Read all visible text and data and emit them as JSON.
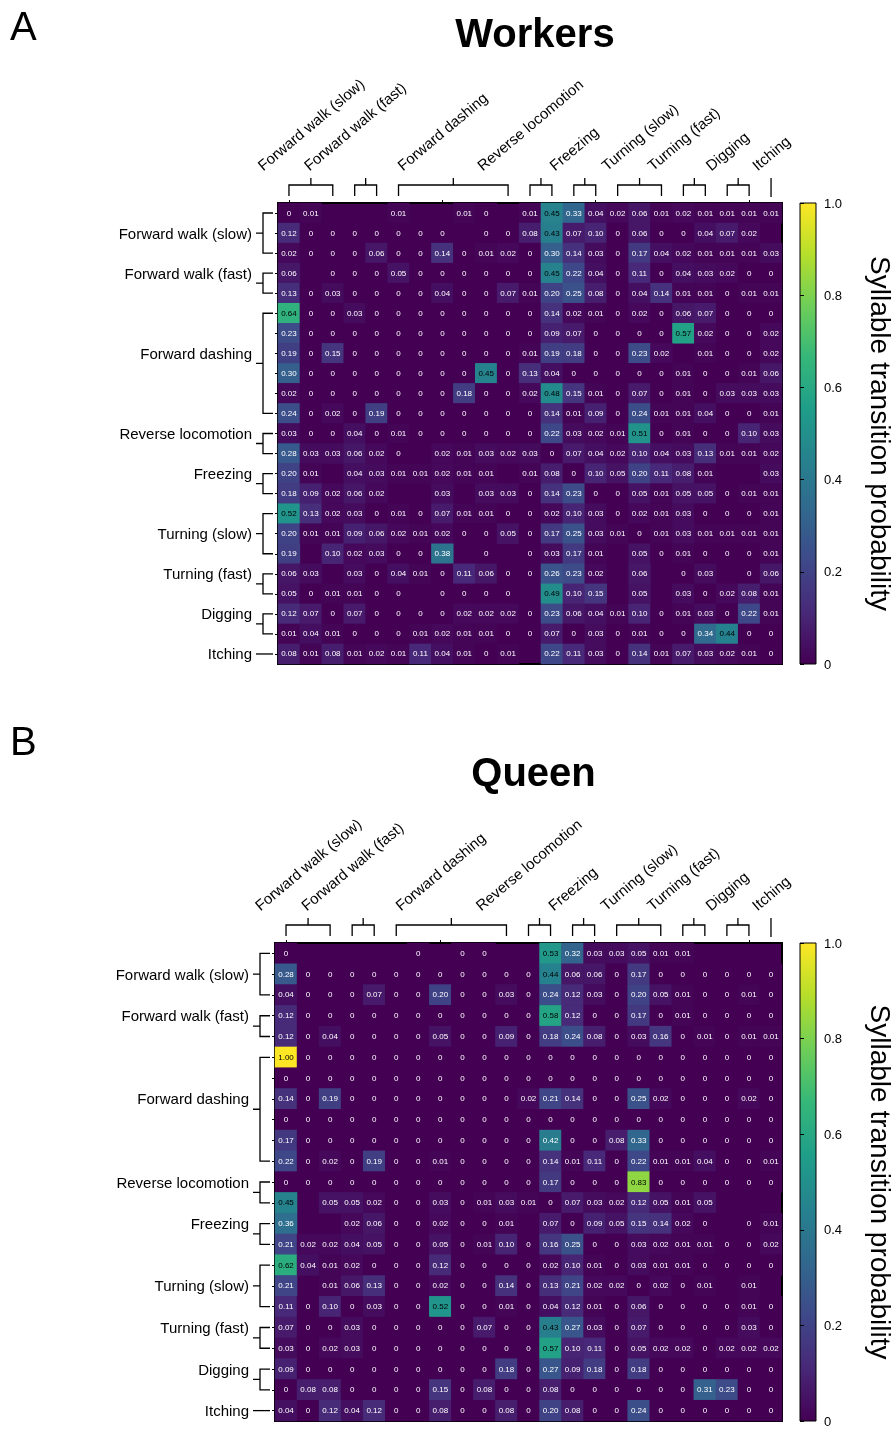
{
  "chart_data": [
    {
      "type": "heatmap",
      "title": "Workers",
      "annotations": [
        "A"
      ],
      "clabel": "Syllable transition probability",
      "clim": [
        0,
        1
      ],
      "cticks": [
        0,
        0.2,
        0.4,
        0.6,
        0.8,
        {
          "value": 1,
          "label": "1.0"
        }
      ],
      "cell_labels": [
        [
          "0",
          "0.01",
          null,
          null,
          null,
          "0.01",
          null,
          null,
          "0.01",
          "0",
          null,
          "0.01",
          "0.45",
          "0.33",
          "0.04",
          "0.02",
          "0.06",
          "0.01",
          "0.02",
          "0.01",
          "0.01",
          "0.01",
          "0.01"
        ],
        [
          "0.12",
          "0",
          "0",
          "0",
          "0",
          "0",
          "0",
          "0",
          null,
          "0",
          "0",
          "0.08",
          "0.43",
          "0.07",
          "0.10",
          "0",
          "0.06",
          "0",
          "0",
          "0.04",
          "0.07",
          "0.02",
          null
        ],
        [
          "0.02",
          "0",
          "0",
          "0",
          "0.06",
          "0",
          "0",
          "0.14",
          "0",
          "0.01",
          "0.02",
          "0",
          "0.30",
          "0.14",
          "0.03",
          "0",
          "0.17",
          "0.04",
          "0.02",
          "0.01",
          "0.01",
          "0.01",
          "0.03"
        ],
        [
          "0.06",
          null,
          "0",
          "0",
          "0",
          "0.05",
          "0",
          "0",
          "0",
          "0",
          "0",
          "0",
          "0.45",
          "0.22",
          "0.04",
          "0",
          "0.11",
          "0",
          "0.04",
          "0.03",
          "0.02",
          "0",
          "0"
        ],
        [
          "0.13",
          "0",
          "0.03",
          "0",
          "0",
          "0",
          "0",
          "0.04",
          "0",
          "0",
          "0.07",
          "0.01",
          "0.20",
          "0.25",
          "0.08",
          "0",
          "0.04",
          "0.14",
          "0.01",
          "0.01",
          "0",
          "0.01",
          "0.01"
        ],
        [
          "0.64",
          "0",
          "0",
          "0.03",
          "0",
          "0",
          "0",
          "0",
          "0",
          "0",
          "0",
          "0",
          "0.14",
          "0.02",
          "0.01",
          "0",
          "0.02",
          "0",
          "0.06",
          "0.07",
          "0",
          "0",
          "0"
        ],
        [
          "0.23",
          "0",
          "0",
          "0",
          "0",
          "0",
          "0",
          "0",
          "0",
          "0",
          "0",
          "0",
          "0.09",
          "0.07",
          "0",
          "0",
          "0",
          "0",
          "0.57",
          "0.02",
          "0",
          "0",
          "0.02"
        ],
        [
          "0.19",
          "0",
          "0.15",
          "0",
          "0",
          "0",
          "0",
          "0",
          "0",
          "0",
          "0",
          "0.01",
          "0.19",
          "0.18",
          "0",
          "0",
          "0.23",
          "0.02",
          null,
          "0.01",
          "0",
          "0",
          "0.02"
        ],
        [
          "0.30",
          "0",
          "0",
          "0",
          "0",
          "0",
          "0",
          "0",
          "0",
          "0.45",
          "0",
          "0.13",
          "0.04",
          "0",
          "0",
          "0",
          "0",
          "0",
          "0.01",
          "0",
          "0",
          "0.01",
          "0.06"
        ],
        [
          "0.02",
          "0",
          "0",
          "0",
          "0",
          "0",
          "0",
          "0",
          "0.18",
          "0",
          "0",
          "0.02",
          "0.48",
          "0.15",
          "0.01",
          "0",
          "0.07",
          "0",
          "0.01",
          "0",
          "0.03",
          "0.03",
          "0.03"
        ],
        [
          "0.24",
          "0",
          "0.02",
          "0",
          "0.19",
          "0",
          "0",
          "0",
          "0",
          "0",
          "0",
          "0",
          "0.14",
          "0.01",
          "0.09",
          "0",
          "0.24",
          "0.01",
          "0.01",
          "0.04",
          "0",
          "0",
          "0.01"
        ],
        [
          "0.03",
          "0",
          "0",
          "0.04",
          "0",
          "0.01",
          "0",
          "0",
          "0",
          "0",
          "0",
          "0",
          "0.22",
          "0.03",
          "0.02",
          "0.01",
          "0.51",
          "0",
          "0.01",
          "0",
          "0",
          "0.10",
          "0.03"
        ],
        [
          "0.28",
          "0.03",
          "0.03",
          "0.06",
          "0.02",
          "0",
          null,
          "0.02",
          "0.01",
          "0.03",
          "0.02",
          "0.03",
          "0",
          "0.07",
          "0.04",
          "0.02",
          "0.10",
          "0.04",
          "0.03",
          "0.13",
          "0.01",
          "0.01",
          "0.02"
        ],
        [
          "0.20",
          "0.01",
          null,
          "0.04",
          "0.03",
          "0.01",
          "0.01",
          "0.02",
          "0.01",
          "0.01",
          null,
          "0.01",
          "0.08",
          "0",
          "0.10",
          "0.05",
          "0.20",
          "0.11",
          "0.08",
          "0.01",
          null,
          null,
          "0.03"
        ],
        [
          "0.18",
          "0.09",
          "0.02",
          "0.06",
          "0.02",
          null,
          null,
          "0.03",
          null,
          "0.03",
          "0.03",
          "0",
          "0.14",
          "0.23",
          "0",
          "0",
          "0.05",
          "0.01",
          "0.05",
          "0.05",
          "0",
          "0.01",
          "0.01"
        ],
        [
          "0.52",
          "0.13",
          "0.02",
          "0.03",
          "0",
          "0.01",
          "0",
          "0.07",
          "0.01",
          "0.01",
          "0",
          "0",
          "0.02",
          "0.10",
          "0.03",
          "0",
          "0.02",
          "0.01",
          "0.03",
          "0",
          "0",
          "0",
          "0.01"
        ],
        [
          "0.20",
          "0.01",
          "0.01",
          "0.09",
          "0.06",
          "0.02",
          "0.01",
          "0.02",
          "0",
          "0",
          "0.05",
          "0",
          "0.17",
          "0.25",
          "0.03",
          "0.01",
          "0",
          "0.01",
          "0.03",
          "0.01",
          "0.01",
          "0.01",
          "0.01"
        ],
        [
          "0.19",
          null,
          "0.10",
          "0.02",
          "0.03",
          "0",
          "0",
          "0.38",
          null,
          "0",
          null,
          "0",
          "0.03",
          "0.17",
          "0.01",
          null,
          "0.05",
          "0",
          "0.01",
          "0",
          "0",
          "0",
          "0.01"
        ],
        [
          "0.06",
          "0.03",
          null,
          "0.03",
          "0",
          "0.04",
          "0.01",
          "0",
          "0.11",
          "0.06",
          "0",
          "0",
          "0.26",
          "0.23",
          "0.02",
          null,
          "0.06",
          null,
          "0",
          "0.03",
          null,
          "0",
          "0.06"
        ],
        [
          "0.05",
          "0",
          "0.01",
          "0.01",
          "0",
          "0",
          null,
          "0",
          "0",
          "0",
          "0",
          null,
          "0.49",
          "0.10",
          "0.15",
          null,
          "0.05",
          null,
          "0.03",
          "0",
          "0.02",
          "0.08",
          "0.01"
        ],
        [
          "0.12",
          "0.07",
          "0",
          "0.07",
          "0",
          "0",
          "0",
          "0",
          "0.02",
          "0.02",
          "0.02",
          "0",
          "0.23",
          "0.06",
          "0.04",
          "0.01",
          "0.10",
          "0",
          "0.01",
          "0.03",
          "0",
          "0.22",
          "0.01"
        ],
        [
          "0.01",
          "0.04",
          "0.01",
          "0",
          "0",
          "0",
          "0.01",
          "0.02",
          "0.01",
          "0.01",
          "0",
          "0",
          "0.07",
          "0",
          "0.03",
          "0",
          "0.01",
          "0",
          "0",
          "0.34",
          "0.44",
          "0",
          "0"
        ],
        [
          "0.08",
          "0.01",
          "0.08",
          "0.01",
          "0.02",
          "0.01",
          "0.11",
          "0.04",
          "0.01",
          "0",
          "0.01",
          null,
          "0.22",
          "0.11",
          "0.03",
          "0",
          "0.14",
          "0.01",
          "0.07",
          "0.03",
          "0.02",
          "0.01",
          "0"
        ]
      ],
      "categories": [
        null,
        "Forward walk (slow)",
        null,
        "Forward walk (fast)",
        null,
        null,
        null,
        "Forward dashing",
        null,
        null,
        null,
        "Reverse locomotion",
        null,
        "Freezing",
        null,
        null,
        "Turning (slow)",
        null,
        "Turning (fast)",
        null,
        "Digging",
        null,
        "Itching"
      ],
      "y_categories": [
        null,
        "Forward walk (slow)",
        null,
        "Forward walk (fast)",
        null,
        null,
        null,
        "Forward dashing",
        null,
        null,
        null,
        "Reverse locomotion",
        null,
        "Freezing",
        null,
        null,
        "Turning (slow)",
        null,
        "Turning (fast)",
        null,
        "Digging",
        null,
        "Itching"
      ],
      "cells": [
        [
          0,
          0.01,
          null,
          null,
          null,
          0.01,
          null,
          null,
          0.01,
          0,
          null,
          0.01,
          0.45,
          0.33,
          0.04,
          0.02,
          0.06,
          0.01,
          0.02,
          0.01,
          0.01,
          0.01,
          0.01
        ],
        [
          0.12,
          0,
          0,
          0,
          0,
          0,
          0,
          0,
          null,
          0,
          0,
          0.08,
          0.43,
          0.07,
          0.1,
          0,
          0.06,
          0,
          0,
          0.04,
          0.07,
          0.02,
          null
        ],
        [
          0.02,
          0,
          0,
          0,
          0.06,
          0,
          0,
          0.14,
          0,
          0.01,
          0.02,
          0,
          0.3,
          0.14,
          0.03,
          0,
          0.17,
          0.04,
          0.02,
          0.01,
          0.01,
          0.01,
          0.03
        ],
        [
          0.06,
          null,
          0,
          0,
          0,
          0.05,
          0,
          0,
          0,
          0,
          0,
          0,
          0.45,
          0.22,
          0.04,
          0,
          0.11,
          0,
          0.04,
          0.03,
          0.02,
          0,
          0
        ],
        [
          0.13,
          0,
          0.03,
          0,
          0,
          0,
          0,
          0.04,
          0,
          0,
          0.07,
          0.01,
          0.2,
          0.25,
          0.08,
          0,
          0.04,
          0.14,
          0.01,
          0.01,
          0,
          0.01,
          0.01
        ],
        [
          0.64,
          0,
          0,
          0.03,
          0,
          0,
          0,
          0,
          0,
          0,
          0,
          0,
          0.14,
          0.02,
          0.01,
          0,
          0.02,
          0,
          0.06,
          0.07,
          0,
          0,
          0
        ],
        [
          0.23,
          0,
          0,
          0,
          0,
          0,
          0,
          0,
          0,
          0,
          0,
          0,
          0.09,
          0.07,
          0,
          0,
          0,
          0,
          0.57,
          0.02,
          0,
          0,
          0.02
        ],
        [
          0.19,
          0,
          0.15,
          0,
          0,
          0,
          0,
          0,
          0,
          0,
          0,
          0.01,
          0.19,
          0.18,
          0,
          0,
          0.23,
          0.02,
          null,
          0.01,
          0,
          0,
          0.02
        ],
        [
          0.3,
          0,
          0,
          0,
          0,
          0,
          0,
          0,
          0,
          0.45,
          0,
          0.13,
          0.04,
          0,
          0,
          0,
          0,
          0,
          0.01,
          0,
          0,
          0.01,
          0.06
        ],
        [
          0.02,
          0,
          0,
          0,
          0,
          0,
          0,
          0,
          0.18,
          0,
          0,
          0.02,
          0.48,
          0.15,
          0.01,
          0,
          0.07,
          0,
          0.01,
          0,
          0.03,
          0.03,
          0.03
        ],
        [
          0.24,
          0,
          0.02,
          0,
          0.19,
          0,
          0,
          0,
          0,
          0,
          0,
          0,
          0.14,
          0.01,
          0.09,
          0,
          0.24,
          0.01,
          0.01,
          0.04,
          0,
          0,
          0.01
        ],
        [
          0.03,
          0,
          0,
          0.04,
          0,
          0.01,
          0,
          0,
          0,
          0,
          0,
          0,
          0.22,
          0.03,
          0.02,
          0.01,
          0.51,
          0,
          0.01,
          0,
          0,
          0.1,
          0.03
        ],
        [
          0.28,
          0.03,
          0.03,
          0.06,
          0.02,
          0,
          null,
          0.02,
          0.01,
          0.03,
          0.02,
          0.03,
          0,
          0.07,
          0.04,
          0.02,
          0.1,
          0.04,
          0.03,
          0.13,
          0.01,
          0.01,
          0.02
        ],
        [
          0.2,
          0.01,
          null,
          0.04,
          0.03,
          0.01,
          0.01,
          0.02,
          0.01,
          0.01,
          null,
          0.01,
          0.08,
          0,
          0.1,
          0.05,
          0.2,
          0.11,
          0.08,
          0.01,
          null,
          null,
          0.03
        ],
        [
          0.18,
          0.09,
          0.02,
          0.06,
          0.02,
          null,
          null,
          0.03,
          null,
          0.03,
          0.03,
          0,
          0.14,
          0.23,
          0,
          0,
          0.05,
          0.01,
          0.05,
          0.05,
          0,
          0.01,
          0.01
        ],
        [
          0.52,
          0.13,
          0.02,
          0.03,
          0,
          0.01,
          0,
          0.07,
          0.01,
          0.01,
          0,
          0,
          0.02,
          0.1,
          0.03,
          0,
          0.02,
          0.01,
          0.03,
          0,
          0,
          0,
          0.01
        ],
        [
          0.2,
          0.01,
          0.01,
          0.09,
          0.06,
          0.02,
          0.01,
          0.02,
          0,
          0,
          0.05,
          0,
          0.17,
          0.25,
          0.03,
          0.01,
          0,
          0.01,
          0.03,
          0.01,
          0.01,
          0.01,
          0.01
        ],
        [
          0.19,
          null,
          0.1,
          0.02,
          0.03,
          0,
          0,
          0.38,
          null,
          0,
          null,
          0,
          0.03,
          0.17,
          0.01,
          null,
          0.05,
          0,
          0.01,
          0,
          0,
          0,
          0.01
        ],
        [
          0.06,
          0.03,
          null,
          0.03,
          0,
          0.04,
          0.01,
          0,
          0.11,
          0.06,
          0,
          0,
          0.26,
          0.23,
          0.02,
          null,
          0.06,
          null,
          0,
          0.03,
          null,
          0,
          0.06
        ],
        [
          0.05,
          0,
          0.01,
          0.01,
          0,
          0,
          null,
          0,
          0,
          0,
          0,
          null,
          0.49,
          0.1,
          0.15,
          null,
          0.05,
          null,
          0.03,
          0,
          0.02,
          0.08,
          0.01
        ],
        [
          0.12,
          0.07,
          0,
          0.07,
          0,
          0,
          0,
          0,
          0.02,
          0.02,
          0.02,
          0,
          0.23,
          0.06,
          0.04,
          0.01,
          0.1,
          0,
          0.01,
          0.03,
          0,
          0.22,
          0.01
        ],
        [
          0.01,
          0.04,
          0.01,
          0,
          0,
          0,
          0.01,
          0.02,
          0.01,
          0.01,
          0,
          0,
          0.07,
          0,
          0.03,
          0,
          0.01,
          0,
          0,
          0.34,
          0.44,
          0,
          0
        ],
        [
          0.08,
          0.01,
          0.08,
          0.01,
          0.02,
          0.01,
          0.11,
          0.04,
          0.01,
          0,
          0.01,
          null,
          0.22,
          0.11,
          0.03,
          0,
          0.14,
          0.01,
          0.07,
          0.03,
          0.02,
          0.01,
          0
        ]
      ]
    },
    {
      "type": "heatmap",
      "title": "Queen",
      "annotations": [
        "B"
      ],
      "clabel": "Syllable transition probability",
      "clim": [
        0,
        1
      ],
      "cticks": [
        0,
        0.2,
        0.4,
        0.6,
        0.8,
        {
          "value": 1,
          "label": "1.0"
        }
      ],
      "cell_labels": [
        [
          "0",
          null,
          null,
          null,
          null,
          null,
          "0",
          null,
          "0",
          "0",
          null,
          null,
          "0.53",
          "0.32",
          "0.03",
          "0.03",
          "0.05",
          "0.01",
          "0.01",
          null,
          null,
          null,
          null
        ],
        [
          "0.28",
          "0",
          "0",
          "0",
          "0",
          "0",
          "0",
          "0",
          "0",
          "0",
          "0",
          "0",
          "0.44",
          "0.06",
          "0.06",
          "0",
          "0.17",
          "0",
          "0",
          "0",
          "0",
          "0",
          "0"
        ],
        [
          "0.04",
          "0",
          "0",
          "0",
          "0.07",
          "0",
          "0",
          "0.20",
          "0",
          "0",
          "0.03",
          "0",
          "0.24",
          "0.12",
          "0.03",
          "0",
          "0.20",
          "0.05",
          "0.01",
          "0",
          "0",
          "0.01",
          "0"
        ],
        [
          "0.12",
          "0",
          "0",
          "0",
          "0",
          "0",
          "0",
          "0",
          "0",
          "0",
          "0",
          "0",
          "0.58",
          "0.12",
          "0",
          "0",
          "0.17",
          "0",
          "0.01",
          "0",
          "0",
          "0",
          "0"
        ],
        [
          "0.12",
          "0",
          "0.04",
          "0",
          "0",
          "0",
          "0",
          "0.05",
          "0",
          "0",
          "0.09",
          "0",
          "0.18",
          "0.24",
          "0.08",
          "0",
          "0.03",
          "0.16",
          "0",
          "0.01",
          "0",
          "0.01",
          "0.01"
        ],
        [
          "1.00",
          "0",
          "0",
          "0",
          "0",
          "0",
          "0",
          "0",
          "0",
          "0",
          "0",
          "0",
          "0",
          "0",
          "0",
          "0",
          "0",
          "0",
          "0",
          "0",
          "0",
          "0",
          "0"
        ],
        [
          "0",
          "0",
          "0",
          "0",
          "0",
          "0",
          "0",
          "0",
          "0",
          "0",
          "0",
          "0",
          "0",
          "0",
          "0",
          "0",
          "0",
          "0",
          "0",
          "0",
          "0",
          "0",
          "0"
        ],
        [
          "0.14",
          "0",
          "0.19",
          "0",
          "0",
          "0",
          "0",
          "0",
          "0",
          "0",
          "0",
          "0.02",
          "0.21",
          "0.14",
          "0",
          "0",
          "0.25",
          "0.02",
          "0",
          "0",
          "0",
          "0.02",
          "0"
        ],
        [
          "0",
          "0",
          "0",
          "0",
          "0",
          "0",
          "0",
          "0",
          "0",
          "0",
          "0",
          "0",
          "0",
          "0",
          "0",
          "0",
          "0",
          "0",
          "0",
          "0",
          "0",
          "0",
          "0"
        ],
        [
          "0.17",
          "0",
          "0",
          "0",
          "0",
          "0",
          "0",
          "0",
          "0",
          "0",
          "0",
          "0",
          "0.42",
          "0",
          "0",
          "0.08",
          "0.33",
          "0",
          "0",
          "0",
          "0",
          "0",
          "0"
        ],
        [
          "0.22",
          "0",
          "0.02",
          "0",
          "0.19",
          "0",
          "0",
          "0.01",
          "0",
          "0",
          "0",
          "0",
          "0.14",
          "0.01",
          "0.11",
          "0",
          "0.22",
          "0.01",
          "0.01",
          "0.04",
          "0",
          "0",
          "0.01"
        ],
        [
          "0",
          "0",
          "0",
          "0",
          "0",
          "0",
          "0",
          "0",
          "0",
          "0",
          "0",
          "0",
          "0.17",
          "0",
          "0",
          "0",
          "0.83",
          "0",
          "0",
          "0",
          "0",
          "0",
          "0"
        ],
        [
          "0.45",
          null,
          "0.05",
          "0.05",
          "0.02",
          "0",
          "0",
          "0.03",
          "0",
          "0.01",
          "0.03",
          "0.01",
          "0",
          "0.07",
          "0.03",
          "0.02",
          "0.12",
          "0.05",
          "0.01",
          "0.05",
          null,
          null,
          null
        ],
        [
          "0.36",
          null,
          null,
          "0.02",
          "0.06",
          "0",
          "0",
          "0.02",
          "0",
          "0",
          "0.01",
          null,
          "0.07",
          "0",
          "0.09",
          "0.05",
          "0.15",
          "0.14",
          "0.02",
          "0",
          null,
          "0",
          "0.01"
        ],
        [
          "0.21",
          "0.02",
          "0.02",
          "0.04",
          "0.05",
          "0",
          "0",
          "0.05",
          "0",
          "0.01",
          "0.10",
          "0",
          "0.16",
          "0.25",
          "0",
          "0",
          "0.03",
          "0.02",
          "0.01",
          "0.01",
          "0",
          "0",
          "0.02"
        ],
        [
          "0.62",
          "0.04",
          "0.01",
          "0.02",
          "0",
          "0",
          "0",
          "0.12",
          "0",
          "0",
          "0",
          "0",
          "0.02",
          "0.10",
          "0.01",
          "0",
          "0.03",
          "0.01",
          "0.01",
          "0",
          "0",
          "0",
          "0"
        ],
        [
          "0.21",
          null,
          "0.01",
          "0.06",
          "0.13",
          "0",
          "0",
          "0.02",
          "0",
          "0",
          "0.14",
          "0",
          "0.13",
          "0.21",
          "0.02",
          "0.02",
          "0",
          "0.02",
          "0",
          "0.01",
          null,
          "0.01",
          null
        ],
        [
          "0.11",
          "0",
          "0.10",
          "0",
          "0.03",
          "0",
          "0",
          "0.52",
          "0",
          "0",
          "0.01",
          "0",
          "0.04",
          "0.12",
          "0.01",
          "0",
          "0.06",
          "0",
          "0",
          "0",
          "0",
          "0.01",
          "0"
        ],
        [
          "0.07",
          "0",
          "0",
          "0.03",
          "0",
          "0",
          "0",
          "0",
          "0",
          "0.07",
          "0",
          "0",
          "0.43",
          "0.27",
          "0.03",
          "0",
          "0.07",
          "0",
          "0",
          "0",
          "0",
          "0.03",
          "0"
        ],
        [
          "0.03",
          "0",
          "0.02",
          "0.03",
          "0",
          "0",
          "0",
          "0",
          "0",
          "0",
          "0",
          "0",
          "0.57",
          "0.10",
          "0.11",
          "0",
          "0.05",
          "0.02",
          "0.02",
          "0",
          "0.02",
          "0.02",
          "0.02"
        ],
        [
          "0.09",
          "0",
          "0",
          "0",
          "0",
          "0",
          "0",
          "0",
          "0",
          "0",
          "0.18",
          "0",
          "0.27",
          "0.09",
          "0.18",
          "0",
          "0.18",
          "0",
          "0",
          "0",
          "0",
          "0",
          "0"
        ],
        [
          "0",
          "0.08",
          "0.08",
          "0",
          "0",
          "0",
          "0",
          "0.15",
          "0",
          "0.08",
          "0",
          "0",
          "0.08",
          "0",
          "0",
          "0",
          "0",
          "0",
          "0",
          "0.31",
          "0.23",
          "0",
          "0"
        ],
        [
          "0.04",
          "0",
          "0.12",
          "0.04",
          "0.12",
          "0",
          "0",
          "0.08",
          "0",
          "0",
          "0.08",
          "0",
          "0.20",
          "0.08",
          "0",
          "0",
          "0.24",
          "0",
          "0",
          "0",
          "0",
          "0",
          "0"
        ]
      ],
      "categories": [
        null,
        "Forward walk (slow)",
        null,
        "Forward walk (fast)",
        null,
        null,
        null,
        "Forward dashing",
        null,
        null,
        null,
        "Reverse locomotion",
        null,
        "Freezing",
        null,
        null,
        "Turning (slow)",
        null,
        "Turning (fast)",
        null,
        "Digging",
        null,
        "Itching"
      ],
      "y_categories": [
        null,
        "Forward walk (slow)",
        null,
        "Forward walk (fast)",
        null,
        null,
        null,
        "Forward dashing",
        null,
        null,
        null,
        "Reverse locomotion",
        null,
        "Freezing",
        null,
        null,
        "Turning (slow)",
        null,
        "Turning (fast)",
        null,
        "Digging",
        null,
        "Itching"
      ],
      "cells": [
        [
          0,
          null,
          null,
          null,
          null,
          null,
          0,
          null,
          0,
          0,
          null,
          null,
          0.53,
          0.32,
          0.03,
          0.03,
          0.05,
          0.01,
          0.01,
          null,
          null,
          null,
          null
        ],
        [
          0.28,
          0,
          0,
          0,
          0,
          0,
          0,
          0,
          0,
          0,
          0,
          0,
          0.44,
          0.06,
          0.06,
          0,
          0.17,
          0,
          0,
          0,
          0,
          0,
          0
        ],
        [
          0.04,
          0,
          0,
          0,
          0.07,
          0,
          0,
          0.2,
          0,
          0,
          0.03,
          0,
          0.24,
          0.12,
          0.03,
          0,
          0.2,
          0.05,
          0.01,
          0,
          0,
          0.01,
          0
        ],
        [
          0.12,
          0,
          0,
          0,
          0,
          0,
          0,
          0,
          0,
          0,
          0,
          0,
          0.58,
          0.12,
          0,
          0,
          0.17,
          0,
          0.01,
          0,
          0,
          0,
          0
        ],
        [
          0.12,
          0,
          0.04,
          0,
          0,
          0,
          0,
          0.05,
          0,
          0,
          0.09,
          0,
          0.18,
          0.24,
          0.08,
          0,
          0.03,
          0.16,
          0,
          0.01,
          0,
          0.01,
          0.01
        ],
        [
          1,
          0,
          0,
          0,
          0,
          0,
          0,
          0,
          0,
          0,
          0,
          0,
          0,
          0,
          0,
          0,
          0,
          0,
          0,
          0,
          0,
          0,
          0
        ],
        [
          0,
          0,
          0,
          0,
          0,
          0,
          0,
          0,
          0,
          0,
          0,
          0,
          0,
          0,
          0,
          0,
          0,
          0,
          0,
          0,
          0,
          0,
          0
        ],
        [
          0.14,
          0,
          0.19,
          0,
          0,
          0,
          0,
          0,
          0,
          0,
          0,
          0.02,
          0.21,
          0.14,
          0,
          0,
          0.25,
          0.02,
          0,
          0,
          0,
          0.02,
          0
        ],
        [
          0,
          0,
          0,
          0,
          0,
          0,
          0,
          0,
          0,
          0,
          0,
          0,
          0,
          0,
          0,
          0,
          0,
          0,
          0,
          0,
          0,
          0,
          0
        ],
        [
          0.17,
          0,
          0,
          0,
          0,
          0,
          0,
          0,
          0,
          0,
          0,
          0,
          0.42,
          0,
          0,
          0.08,
          0.33,
          0,
          0,
          0,
          0,
          0,
          0
        ],
        [
          0.22,
          0,
          0.02,
          0,
          0.19,
          0,
          0,
          0.01,
          0,
          0,
          0,
          0,
          0.14,
          0.01,
          0.11,
          0,
          0.22,
          0.01,
          0.01,
          0.04,
          0,
          0,
          0.01
        ],
        [
          0,
          0,
          0,
          0,
          0,
          0,
          0,
          0,
          0,
          0,
          0,
          0,
          0.17,
          0,
          0,
          0,
          0.83,
          0,
          0,
          0,
          0,
          0,
          0
        ],
        [
          0.45,
          null,
          0.05,
          0.05,
          0.02,
          0,
          0,
          0.03,
          0,
          0.01,
          0.03,
          0.01,
          0,
          0.07,
          0.03,
          0.02,
          0.12,
          0.05,
          0.01,
          0.05,
          null,
          null,
          null
        ],
        [
          0.36,
          null,
          null,
          0.02,
          0.06,
          0,
          0,
          0.02,
          0,
          0,
          0.01,
          null,
          0.07,
          0,
          0.09,
          0.05,
          0.15,
          0.14,
          0.02,
          0,
          null,
          0,
          0.01
        ],
        [
          0.21,
          0.02,
          0.02,
          0.04,
          0.05,
          0,
          0,
          0.05,
          0,
          0.01,
          0.1,
          0,
          0.16,
          0.25,
          0,
          0,
          0.03,
          0.02,
          0.01,
          0.01,
          0,
          0,
          0.02
        ],
        [
          0.62,
          0.04,
          0.01,
          0.02,
          0,
          0,
          0,
          0.12,
          0,
          0,
          0,
          0,
          0.02,
          0.1,
          0.01,
          0,
          0.03,
          0.01,
          0.01,
          0,
          0,
          0,
          0
        ],
        [
          0.21,
          null,
          0.01,
          0.06,
          0.13,
          0,
          0,
          0.02,
          0,
          0,
          0.14,
          0,
          0.13,
          0.21,
          0.02,
          0.02,
          0,
          0.02,
          0,
          0.01,
          null,
          0.01,
          null
        ],
        [
          0.11,
          0,
          0.1,
          0,
          0.03,
          0,
          0,
          0.52,
          0,
          0,
          0.01,
          0,
          0.04,
          0.12,
          0.01,
          0,
          0.06,
          0,
          0,
          0,
          0,
          0.01,
          0
        ],
        [
          0.07,
          0,
          0,
          0.03,
          0,
          0,
          0,
          0,
          0,
          0.07,
          0,
          0,
          0.43,
          0.27,
          0.03,
          0,
          0.07,
          0,
          0,
          0,
          0,
          0.03,
          0
        ],
        [
          0.03,
          0,
          0.02,
          0.03,
          0,
          0,
          0,
          0,
          0,
          0,
          0,
          0,
          0.57,
          0.1,
          0.11,
          0,
          0.05,
          0.02,
          0.02,
          0,
          0.02,
          0.02,
          0.02
        ],
        [
          0.09,
          0,
          0,
          0,
          0,
          0,
          0,
          0,
          0,
          0,
          0.18,
          0,
          0.27,
          0.09,
          0.18,
          0,
          0.18,
          0,
          0,
          0,
          0,
          0,
          0
        ],
        [
          0,
          0.08,
          0.08,
          0,
          0,
          0,
          0,
          0.15,
          0,
          0.08,
          0,
          0,
          0.08,
          0,
          0,
          0,
          0,
          0,
          0,
          0.31,
          0.23,
          0,
          0
        ],
        [
          0.04,
          0,
          0.12,
          0.04,
          0.12,
          0,
          0,
          0.08,
          0,
          0,
          0.08,
          0,
          0.2,
          0.08,
          0,
          0,
          0.24,
          0,
          0,
          0,
          0,
          0,
          0
        ]
      ]
    }
  ]
}
